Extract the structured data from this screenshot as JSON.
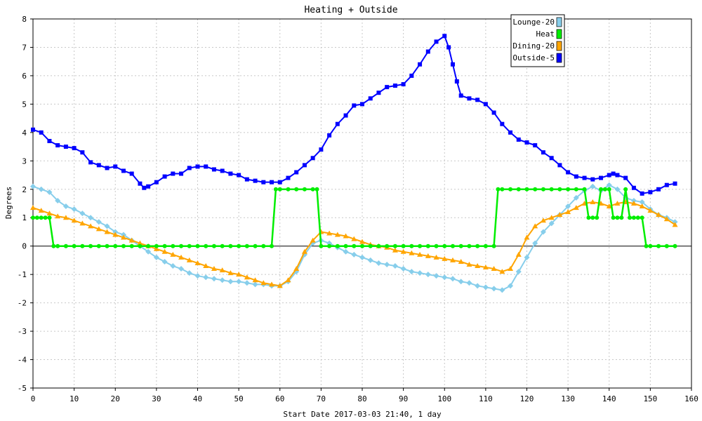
{
  "chart_data": {
    "type": "line",
    "title": "Heating + Outside",
    "xlabel": "Start Date 2017-03-03 21:40, 1 day",
    "ylabel": "Degrees",
    "xlim": [
      0,
      160
    ],
    "ylim": [
      -5,
      8
    ],
    "x_ticks": [
      "0",
      "10",
      "20",
      "30",
      "40",
      "50",
      "60",
      "70",
      "80",
      "90",
      "100",
      "110",
      "120",
      "130",
      "140",
      "150",
      "160"
    ],
    "y_ticks": [
      "-5",
      "-4",
      "-3",
      "-2",
      "-1",
      "0",
      "1",
      "2",
      "3",
      "4",
      "5",
      "6",
      "7",
      "8"
    ],
    "grid": true,
    "legend_position": "top-right",
    "series": [
      {
        "name": "Lounge-20",
        "color": "#87ceeb",
        "marker": "diamond",
        "x": [
          0,
          2,
          4,
          6,
          8,
          10,
          12,
          14,
          16,
          18,
          20,
          22,
          24,
          26,
          28,
          30,
          32,
          34,
          36,
          38,
          40,
          42,
          44,
          46,
          48,
          50,
          52,
          54,
          56,
          58,
          60,
          62,
          64,
          66,
          68,
          70,
          72,
          74,
          76,
          78,
          80,
          82,
          84,
          86,
          88,
          90,
          92,
          94,
          96,
          98,
          100,
          102,
          104,
          106,
          108,
          110,
          112,
          114,
          116,
          118,
          120,
          122,
          124,
          126,
          128,
          130,
          132,
          134,
          136,
          138,
          140,
          142,
          144,
          146,
          148,
          150,
          152,
          154,
          156
        ],
        "y": [
          2.1,
          2.0,
          1.9,
          1.6,
          1.4,
          1.3,
          1.15,
          1.0,
          0.85,
          0.7,
          0.5,
          0.4,
          0.2,
          0.0,
          -0.2,
          -0.4,
          -0.55,
          -0.7,
          -0.8,
          -0.95,
          -1.05,
          -1.1,
          -1.15,
          -1.2,
          -1.25,
          -1.25,
          -1.3,
          -1.35,
          -1.35,
          -1.4,
          -1.4,
          -1.25,
          -0.9,
          -0.3,
          0.1,
          0.2,
          0.1,
          -0.05,
          -0.2,
          -0.3,
          -0.4,
          -0.5,
          -0.6,
          -0.65,
          -0.7,
          -0.8,
          -0.9,
          -0.95,
          -1.0,
          -1.05,
          -1.1,
          -1.15,
          -1.25,
          -1.3,
          -1.4,
          -1.45,
          -1.5,
          -1.55,
          -1.4,
          -0.9,
          -0.4,
          0.1,
          0.5,
          0.8,
          1.1,
          1.4,
          1.7,
          1.95,
          2.1,
          1.95,
          2.15,
          2.0,
          1.7,
          1.6,
          1.55,
          1.3,
          1.1,
          1.0,
          0.85
        ]
      },
      {
        "name": "Heat",
        "color": "#00ee00",
        "marker": "circle",
        "x": [
          0,
          1,
          2,
          3,
          4,
          5,
          6,
          8,
          10,
          12,
          14,
          16,
          18,
          20,
          22,
          24,
          26,
          28,
          30,
          32,
          34,
          36,
          38,
          40,
          42,
          44,
          46,
          48,
          50,
          52,
          54,
          56,
          58,
          59,
          60,
          62,
          64,
          66,
          68,
          69,
          70,
          72,
          74,
          76,
          78,
          80,
          82,
          84,
          86,
          88,
          90,
          92,
          94,
          96,
          98,
          100,
          102,
          104,
          106,
          108,
          110,
          112,
          113,
          114,
          116,
          118,
          120,
          122,
          124,
          126,
          128,
          130,
          132,
          134,
          135,
          136,
          137,
          138,
          139,
          140,
          141,
          142,
          143,
          144,
          145,
          146,
          147,
          148,
          149,
          150,
          152,
          154,
          156
        ],
        "y": [
          1,
          1,
          1,
          1,
          1,
          0,
          0,
          0,
          0,
          0,
          0,
          0,
          0,
          0,
          0,
          0,
          0,
          0,
          0,
          0,
          0,
          0,
          0,
          0,
          0,
          0,
          0,
          0,
          0,
          0,
          0,
          0,
          0,
          2,
          2,
          2,
          2,
          2,
          2,
          2,
          0,
          0,
          0,
          0,
          0,
          0,
          0,
          0,
          0,
          0,
          0,
          0,
          0,
          0,
          0,
          0,
          0,
          0,
          0,
          0,
          0,
          0,
          2,
          2,
          2,
          2,
          2,
          2,
          2,
          2,
          2,
          2,
          2,
          2,
          1,
          1,
          1,
          2,
          2,
          2,
          1,
          1,
          1,
          2,
          1,
          1,
          1,
          1,
          0,
          0,
          0,
          0,
          0
        ]
      },
      {
        "name": "Dining-20",
        "color": "#ffa500",
        "marker": "triangle",
        "x": [
          0,
          2,
          4,
          6,
          8,
          10,
          12,
          14,
          16,
          18,
          20,
          22,
          24,
          26,
          28,
          30,
          32,
          34,
          36,
          38,
          40,
          42,
          44,
          46,
          48,
          50,
          52,
          54,
          56,
          58,
          60,
          62,
          64,
          66,
          68,
          70,
          72,
          74,
          76,
          78,
          80,
          82,
          84,
          86,
          88,
          90,
          92,
          94,
          96,
          98,
          100,
          102,
          104,
          106,
          108,
          110,
          112,
          114,
          116,
          118,
          120,
          122,
          124,
          126,
          128,
          130,
          132,
          134,
          136,
          138,
          140,
          142,
          144,
          146,
          148,
          150,
          152,
          154,
          156
        ],
        "y": [
          1.35,
          1.25,
          1.15,
          1.05,
          1.0,
          0.9,
          0.8,
          0.7,
          0.6,
          0.5,
          0.4,
          0.3,
          0.2,
          0.1,
          0.0,
          -0.1,
          -0.2,
          -0.3,
          -0.4,
          -0.5,
          -0.6,
          -0.7,
          -0.8,
          -0.85,
          -0.95,
          -1.0,
          -1.1,
          -1.2,
          -1.3,
          -1.35,
          -1.4,
          -1.2,
          -0.8,
          -0.2,
          0.2,
          0.5,
          0.45,
          0.4,
          0.35,
          0.25,
          0.15,
          0.05,
          0.0,
          -0.05,
          -0.15,
          -0.2,
          -0.25,
          -0.3,
          -0.35,
          -0.4,
          -0.45,
          -0.5,
          -0.55,
          -0.65,
          -0.7,
          -0.75,
          -0.8,
          -0.9,
          -0.8,
          -0.3,
          0.3,
          0.7,
          0.9,
          1.0,
          1.1,
          1.2,
          1.35,
          1.5,
          1.55,
          1.5,
          1.4,
          1.5,
          1.55,
          1.5,
          1.4,
          1.25,
          1.1,
          0.95,
          0.75
        ]
      },
      {
        "name": "Outside-5",
        "color": "#0000ff",
        "marker": "square",
        "x": [
          0,
          2,
          4,
          6,
          8,
          10,
          12,
          14,
          16,
          18,
          20,
          22,
          24,
          26,
          27,
          28,
          30,
          32,
          34,
          36,
          38,
          40,
          42,
          44,
          46,
          48,
          50,
          52,
          54,
          56,
          58,
          60,
          62,
          64,
          66,
          68,
          70,
          72,
          74,
          76,
          78,
          80,
          82,
          84,
          86,
          88,
          90,
          92,
          94,
          96,
          98,
          100,
          101,
          102,
          103,
          104,
          106,
          108,
          110,
          112,
          114,
          116,
          118,
          120,
          122,
          124,
          126,
          128,
          130,
          132,
          134,
          136,
          138,
          140,
          141,
          142,
          144,
          146,
          148,
          150,
          152,
          154,
          156
        ],
        "y": [
          4.1,
          4.0,
          3.7,
          3.55,
          3.5,
          3.45,
          3.3,
          2.95,
          2.85,
          2.75,
          2.8,
          2.65,
          2.55,
          2.2,
          2.05,
          2.1,
          2.25,
          2.45,
          2.55,
          2.55,
          2.75,
          2.8,
          2.8,
          2.7,
          2.65,
          2.55,
          2.5,
          2.35,
          2.3,
          2.25,
          2.25,
          2.25,
          2.4,
          2.6,
          2.85,
          3.1,
          3.4,
          3.9,
          4.3,
          4.6,
          4.95,
          5.0,
          5.2,
          5.4,
          5.6,
          5.65,
          5.7,
          6.0,
          6.4,
          6.85,
          7.2,
          7.4,
          7.0,
          6.4,
          5.8,
          5.3,
          5.2,
          5.15,
          5.0,
          4.7,
          4.3,
          4.0,
          3.75,
          3.65,
          3.55,
          3.3,
          3.1,
          2.85,
          2.6,
          2.45,
          2.4,
          2.35,
          2.4,
          2.5,
          2.55,
          2.5,
          2.4,
          2.05,
          1.85,
          1.9,
          2.0,
          2.15,
          2.2
        ]
      }
    ]
  }
}
